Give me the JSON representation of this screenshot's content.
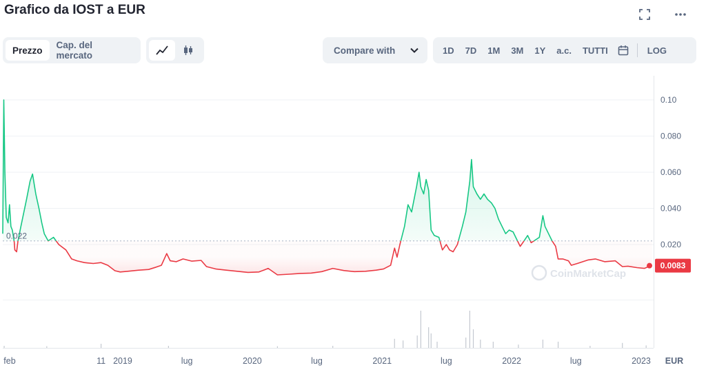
{
  "header": {
    "title": "Grafico da IOST a EUR"
  },
  "toolbar": {
    "tabs": [
      {
        "label": "Prezzo",
        "active": true
      },
      {
        "label": "Cap. del mercato",
        "active": false
      }
    ],
    "compare_label": "Compare with",
    "ranges": [
      "1D",
      "7D",
      "1M",
      "3M",
      "1Y",
      "a.c.",
      "TUTTI"
    ],
    "log_label": "LOG"
  },
  "colors": {
    "up": "#16c784",
    "down": "#ea3943",
    "grid": "#eff2f5",
    "axis_text": "#58667e"
  },
  "chart_data": {
    "type": "line",
    "currency_label": "EUR",
    "reference_price": 0.022,
    "reference_label": "0.022",
    "current_price": 0.0083,
    "current_label": "0.0083",
    "ylim": [
      -0.0105,
      0.108
    ],
    "y_ticks": [
      {
        "value": 0.02,
        "label": "0.020"
      },
      {
        "value": 0.04,
        "label": "0.040"
      },
      {
        "value": 0.06,
        "label": "0.060"
      },
      {
        "value": 0.08,
        "label": "0.080"
      },
      {
        "value": 0.1,
        "label": "0.10"
      }
    ],
    "x_range": [
      "2018-01-28",
      "2023-02-05"
    ],
    "x_ticks": [
      {
        "date": "2018-02-01",
        "label": "feb"
      },
      {
        "date": "2018-11-01",
        "label": "11"
      },
      {
        "date": "2019-01-01",
        "label": "2019"
      },
      {
        "date": "2019-07-01",
        "label": "lug"
      },
      {
        "date": "2020-01-01",
        "label": "2020"
      },
      {
        "date": "2020-07-01",
        "label": "lug"
      },
      {
        "date": "2021-01-01",
        "label": "2021"
      },
      {
        "date": "2021-07-01",
        "label": "lug"
      },
      {
        "date": "2022-01-01",
        "label": "2022"
      },
      {
        "date": "2022-07-01",
        "label": "lug"
      },
      {
        "date": "2023-01-01",
        "label": "2023"
      }
    ],
    "series": [
      {
        "points": [
          [
            "2018-01-28",
            0.026
          ],
          [
            "2018-01-31",
            0.1
          ],
          [
            "2018-02-03",
            0.06
          ],
          [
            "2018-02-07",
            0.035
          ],
          [
            "2018-02-12",
            0.032
          ],
          [
            "2018-02-16",
            0.042
          ],
          [
            "2018-02-20",
            0.03
          ],
          [
            "2018-02-24",
            0.028
          ],
          [
            "2018-03-01",
            0.022
          ],
          [
            "2018-03-03",
            0.017
          ],
          [
            "2018-03-08",
            0.016
          ],
          [
            "2018-03-12",
            0.022
          ],
          [
            "2018-03-20",
            0.03
          ],
          [
            "2018-04-05",
            0.045
          ],
          [
            "2018-04-15",
            0.055
          ],
          [
            "2018-04-22",
            0.059
          ],
          [
            "2018-05-01",
            0.048
          ],
          [
            "2018-05-10",
            0.04
          ],
          [
            "2018-05-18",
            0.032
          ],
          [
            "2018-05-25",
            0.026
          ],
          [
            "2018-06-05",
            0.022
          ],
          [
            "2018-06-20",
            0.024
          ],
          [
            "2018-07-05",
            0.02
          ],
          [
            "2018-07-25",
            0.017
          ],
          [
            "2018-08-10",
            0.012
          ],
          [
            "2018-08-25",
            0.011
          ],
          [
            "2018-09-15",
            0.01
          ],
          [
            "2018-10-10",
            0.0095
          ],
          [
            "2018-11-01",
            0.01
          ],
          [
            "2018-11-20",
            0.0085
          ],
          [
            "2018-12-10",
            0.0055
          ],
          [
            "2018-12-25",
            0.0048
          ],
          [
            "2019-01-15",
            0.0052
          ],
          [
            "2019-02-15",
            0.0058
          ],
          [
            "2019-03-15",
            0.0062
          ],
          [
            "2019-04-05",
            0.0075
          ],
          [
            "2019-04-20",
            0.0085
          ],
          [
            "2019-05-05",
            0.015
          ],
          [
            "2019-05-15",
            0.011
          ],
          [
            "2019-06-01",
            0.0105
          ],
          [
            "2019-06-20",
            0.012
          ],
          [
            "2019-07-15",
            0.0108
          ],
          [
            "2019-08-10",
            0.0112
          ],
          [
            "2019-08-25",
            0.0078
          ],
          [
            "2019-09-20",
            0.0065
          ],
          [
            "2019-10-20",
            0.0058
          ],
          [
            "2019-11-20",
            0.0052
          ],
          [
            "2019-12-20",
            0.0046
          ],
          [
            "2020-01-20",
            0.0048
          ],
          [
            "2020-02-15",
            0.0068
          ],
          [
            "2020-03-12",
            0.0032
          ],
          [
            "2020-04-15",
            0.0036
          ],
          [
            "2020-05-15",
            0.004
          ],
          [
            "2020-06-15",
            0.0042
          ],
          [
            "2020-07-15",
            0.005
          ],
          [
            "2020-08-15",
            0.0068
          ],
          [
            "2020-09-15",
            0.0056
          ],
          [
            "2020-10-15",
            0.005
          ],
          [
            "2020-11-15",
            0.0052
          ],
          [
            "2020-12-15",
            0.0058
          ],
          [
            "2021-01-05",
            0.0065
          ],
          [
            "2021-01-25",
            0.0085
          ],
          [
            "2021-02-05",
            0.018
          ],
          [
            "2021-02-12",
            0.013
          ],
          [
            "2021-02-20",
            0.02
          ],
          [
            "2021-03-05",
            0.03
          ],
          [
            "2021-03-15",
            0.042
          ],
          [
            "2021-03-25",
            0.038
          ],
          [
            "2021-04-01",
            0.045
          ],
          [
            "2021-04-08",
            0.052
          ],
          [
            "2021-04-15",
            0.06
          ],
          [
            "2021-04-20",
            0.052
          ],
          [
            "2021-04-28",
            0.048
          ],
          [
            "2021-05-05",
            0.056
          ],
          [
            "2021-05-12",
            0.05
          ],
          [
            "2021-05-19",
            0.028
          ],
          [
            "2021-05-28",
            0.025
          ],
          [
            "2021-06-10",
            0.024
          ],
          [
            "2021-06-20",
            0.017
          ],
          [
            "2021-07-01",
            0.02
          ],
          [
            "2021-07-10",
            0.017
          ],
          [
            "2021-07-20",
            0.016
          ],
          [
            "2021-08-01",
            0.02
          ],
          [
            "2021-08-15",
            0.03
          ],
          [
            "2021-08-25",
            0.038
          ],
          [
            "2021-09-05",
            0.055
          ],
          [
            "2021-09-10",
            0.067
          ],
          [
            "2021-09-15",
            0.052
          ],
          [
            "2021-09-25",
            0.048
          ],
          [
            "2021-10-05",
            0.045
          ],
          [
            "2021-10-15",
            0.048
          ],
          [
            "2021-10-25",
            0.045
          ],
          [
            "2021-11-05",
            0.043
          ],
          [
            "2021-11-15",
            0.04
          ],
          [
            "2021-11-25",
            0.034
          ],
          [
            "2021-12-05",
            0.03
          ],
          [
            "2021-12-15",
            0.026
          ],
          [
            "2021-12-25",
            0.028
          ],
          [
            "2022-01-05",
            0.027
          ],
          [
            "2022-01-15",
            0.023
          ],
          [
            "2022-01-25",
            0.019
          ],
          [
            "2022-02-05",
            0.022
          ],
          [
            "2022-02-15",
            0.025
          ],
          [
            "2022-02-25",
            0.021
          ],
          [
            "2022-03-05",
            0.022
          ],
          [
            "2022-03-20",
            0.024
          ],
          [
            "2022-03-30",
            0.036
          ],
          [
            "2022-04-05",
            0.03
          ],
          [
            "2022-04-15",
            0.026
          ],
          [
            "2022-04-25",
            0.022
          ],
          [
            "2022-05-05",
            0.019
          ],
          [
            "2022-05-12",
            0.012
          ],
          [
            "2022-05-25",
            0.012
          ],
          [
            "2022-06-10",
            0.011
          ],
          [
            "2022-06-18",
            0.0085
          ],
          [
            "2022-07-05",
            0.0095
          ],
          [
            "2022-08-05",
            0.0115
          ],
          [
            "2022-08-25",
            0.012
          ],
          [
            "2022-09-20",
            0.0105
          ],
          [
            "2022-10-20",
            0.011
          ],
          [
            "2022-11-09",
            0.0078
          ],
          [
            "2022-11-25",
            0.008
          ],
          [
            "2022-12-20",
            0.0072
          ],
          [
            "2023-01-10",
            0.0068
          ],
          [
            "2023-01-25",
            0.008
          ],
          [
            "2023-02-01",
            0.0083
          ]
        ]
      }
    ],
    "volume": [
      [
        "2018-02-01",
        0.05
      ],
      [
        "2018-06-01",
        0.04
      ],
      [
        "2018-11-01",
        0.1
      ],
      [
        "2019-05-10",
        0.05
      ],
      [
        "2020-03-12",
        0.04
      ],
      [
        "2020-08-15",
        0.05
      ],
      [
        "2021-02-05",
        0.22
      ],
      [
        "2021-03-01",
        0.18
      ],
      [
        "2021-04-10",
        0.3
      ],
      [
        "2021-04-20",
        0.9
      ],
      [
        "2021-05-12",
        0.5
      ],
      [
        "2021-05-19",
        0.35
      ],
      [
        "2021-06-05",
        0.15
      ],
      [
        "2021-08-25",
        0.25
      ],
      [
        "2021-09-05",
        0.9
      ],
      [
        "2021-09-15",
        0.45
      ],
      [
        "2021-10-05",
        0.2
      ],
      [
        "2021-11-10",
        0.15
      ],
      [
        "2022-01-20",
        0.08
      ],
      [
        "2022-03-30",
        0.2
      ],
      [
        "2022-05-12",
        0.15
      ],
      [
        "2022-08-10",
        0.05
      ],
      [
        "2022-11-09",
        0.12
      ],
      [
        "2023-01-15",
        0.06
      ]
    ]
  }
}
